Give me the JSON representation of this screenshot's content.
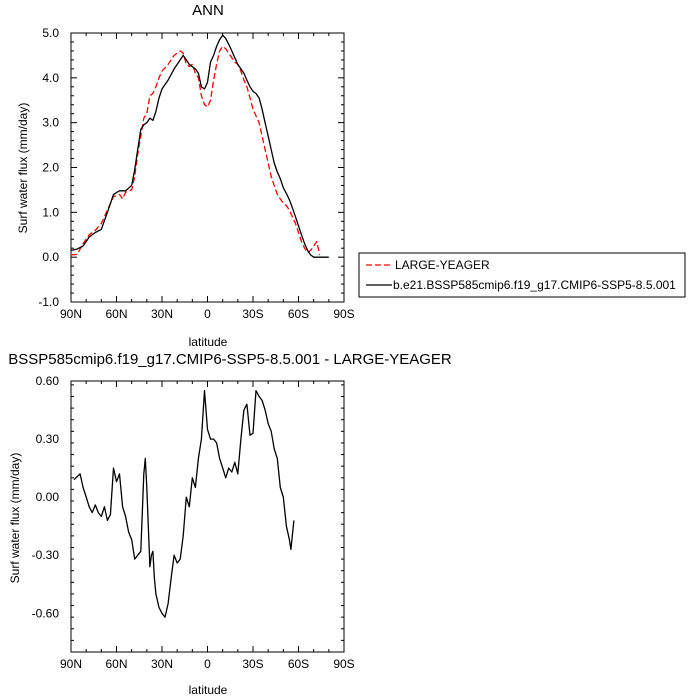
{
  "chart_data": [
    {
      "type": "line",
      "title": "ANN",
      "xlabel": "latitude",
      "ylabel": "Surf water flux (mm/day)",
      "xlim": [
        90,
        -90
      ],
      "ylim": [
        -1.0,
        5.0
      ],
      "x_ticks": [
        90,
        60,
        30,
        0,
        -30,
        -60,
        -90
      ],
      "x_tick_labels": [
        "90N",
        "60N",
        "30N",
        "0",
        "30S",
        "60S",
        "90S"
      ],
      "y_ticks": [
        -1.0,
        0.0,
        1.0,
        2.0,
        3.0,
        4.0,
        5.0
      ],
      "y_tick_labels": [
        "-1.0",
        "0.0",
        "1.0",
        "2.0",
        "3.0",
        "4.0",
        "5.0"
      ],
      "legend_position": "right-bottom, outside plot",
      "series": [
        {
          "name": "LARGE-YEAGER",
          "color": "#ff0000",
          "dash": "dashed",
          "points": [
            [
              90,
              0.05
            ],
            [
              86,
              0.06
            ],
            [
              82,
              0.3
            ],
            [
              78,
              0.5
            ],
            [
              74,
              0.6
            ],
            [
              70,
              0.75
            ],
            [
              66,
              1.05
            ],
            [
              62,
              1.35
            ],
            [
              58,
              1.4
            ],
            [
              56,
              1.3
            ],
            [
              54,
              1.45
            ],
            [
              50,
              1.5
            ],
            [
              48,
              1.8
            ],
            [
              46,
              2.3
            ],
            [
              44,
              2.7
            ],
            [
              42,
              3.1
            ],
            [
              40,
              3.2
            ],
            [
              38,
              3.6
            ],
            [
              36,
              3.65
            ],
            [
              34,
              3.8
            ],
            [
              32,
              4.0
            ],
            [
              30,
              4.15
            ],
            [
              26,
              4.3
            ],
            [
              22,
              4.5
            ],
            [
              18,
              4.6
            ],
            [
              16,
              4.55
            ],
            [
              14,
              4.3
            ],
            [
              12,
              4.25
            ],
            [
              10,
              4.3
            ],
            [
              8,
              4.1
            ],
            [
              6,
              4.0
            ],
            [
              4,
              3.6
            ],
            [
              2,
              3.4
            ],
            [
              0,
              3.35
            ],
            [
              -2,
              3.5
            ],
            [
              -4,
              3.95
            ],
            [
              -6,
              4.3
            ],
            [
              -8,
              4.6
            ],
            [
              -10,
              4.7
            ],
            [
              -12,
              4.65
            ],
            [
              -14,
              4.55
            ],
            [
              -16,
              4.45
            ],
            [
              -18,
              4.35
            ],
            [
              -20,
              4.3
            ],
            [
              -22,
              4.15
            ],
            [
              -24,
              3.95
            ],
            [
              -26,
              3.8
            ],
            [
              -28,
              3.55
            ],
            [
              -30,
              3.3
            ],
            [
              -32,
              3.15
            ],
            [
              -34,
              3.0
            ],
            [
              -36,
              2.7
            ],
            [
              -38,
              2.4
            ],
            [
              -40,
              2.1
            ],
            [
              -42,
              1.8
            ],
            [
              -44,
              1.6
            ],
            [
              -46,
              1.4
            ],
            [
              -48,
              1.3
            ],
            [
              -50,
              1.2
            ],
            [
              -52,
              1.15
            ],
            [
              -54,
              1.05
            ],
            [
              -56,
              0.9
            ],
            [
              -58,
              0.75
            ],
            [
              -60,
              0.55
            ],
            [
              -62,
              0.35
            ],
            [
              -64,
              0.2
            ],
            [
              -66,
              0.1
            ],
            [
              -68,
              0.15
            ],
            [
              -70,
              0.25
            ],
            [
              -72,
              0.35
            ],
            [
              -74,
              0.05
            ]
          ]
        },
        {
          "name": "b.e21.BSSP585cmip6.f19_g17.CMIP6-SSP5-8.5.001",
          "color": "#000000",
          "dash": "solid",
          "points": [
            [
              90,
              0.15
            ],
            [
              86,
              0.18
            ],
            [
              82,
              0.25
            ],
            [
              78,
              0.45
            ],
            [
              74,
              0.55
            ],
            [
              70,
              0.62
            ],
            [
              66,
              1.0
            ],
            [
              62,
              1.4
            ],
            [
              58,
              1.48
            ],
            [
              54,
              1.48
            ],
            [
              50,
              1.6
            ],
            [
              48,
              1.95
            ],
            [
              46,
              2.4
            ],
            [
              44,
              2.85
            ],
            [
              42,
              2.95
            ],
            [
              40,
              3.0
            ],
            [
              38,
              3.1
            ],
            [
              36,
              3.05
            ],
            [
              34,
              3.25
            ],
            [
              32,
              3.55
            ],
            [
              30,
              3.75
            ],
            [
              26,
              3.95
            ],
            [
              22,
              4.2
            ],
            [
              18,
              4.4
            ],
            [
              16,
              4.5
            ],
            [
              14,
              4.4
            ],
            [
              12,
              4.3
            ],
            [
              10,
              4.25
            ],
            [
              8,
              4.2
            ],
            [
              6,
              4.1
            ],
            [
              4,
              3.8
            ],
            [
              2,
              3.75
            ],
            [
              0,
              3.9
            ],
            [
              -2,
              4.35
            ],
            [
              -4,
              4.5
            ],
            [
              -6,
              4.7
            ],
            [
              -8,
              4.85
            ],
            [
              -10,
              4.95
            ],
            [
              -12,
              4.88
            ],
            [
              -14,
              4.75
            ],
            [
              -16,
              4.6
            ],
            [
              -18,
              4.45
            ],
            [
              -20,
              4.3
            ],
            [
              -22,
              4.2
            ],
            [
              -24,
              4.1
            ],
            [
              -26,
              3.95
            ],
            [
              -28,
              3.8
            ],
            [
              -30,
              3.7
            ],
            [
              -32,
              3.65
            ],
            [
              -34,
              3.55
            ],
            [
              -36,
              3.3
            ],
            [
              -38,
              3.0
            ],
            [
              -40,
              2.7
            ],
            [
              -42,
              2.4
            ],
            [
              -44,
              2.1
            ],
            [
              -46,
              1.9
            ],
            [
              -48,
              1.75
            ],
            [
              -50,
              1.55
            ],
            [
              -52,
              1.42
            ],
            [
              -54,
              1.28
            ],
            [
              -56,
              1.1
            ],
            [
              -58,
              0.9
            ],
            [
              -60,
              0.7
            ],
            [
              -62,
              0.5
            ],
            [
              -64,
              0.3
            ],
            [
              -66,
              0.15
            ],
            [
              -68,
              0.05
            ],
            [
              -70,
              0.0
            ],
            [
              -74,
              0.0
            ],
            [
              -78,
              0.0
            ],
            [
              -80,
              0.0
            ]
          ]
        }
      ]
    },
    {
      "type": "line",
      "title": "BSSP585cmip6.f19_g17.CMIP6-SSP5-8.5.001 - LARGE-YEAGER",
      "xlabel": "latitude",
      "ylabel": "Surf water flux (mm/day)",
      "xlim": [
        90,
        -90
      ],
      "ylim": [
        -0.8,
        0.6
      ],
      "x_ticks": [
        90,
        60,
        30,
        0,
        -30,
        -60,
        -90
      ],
      "x_tick_labels": [
        "90N",
        "60N",
        "30N",
        "0",
        "30S",
        "60S",
        "90S"
      ],
      "y_ticks": [
        -0.6,
        -0.3,
        0.0,
        0.3,
        0.6
      ],
      "y_tick_labels": [
        "-0.60",
        "-0.30",
        "0.00",
        "0.30",
        "0.60"
      ],
      "series": [
        {
          "color": "#000000",
          "dash": "solid",
          "points": [
            [
              88,
              0.09
            ],
            [
              84,
              0.12
            ],
            [
              82,
              0.05
            ],
            [
              80,
              0.0
            ],
            [
              78,
              -0.05
            ],
            [
              76,
              -0.08
            ],
            [
              74,
              -0.04
            ],
            [
              72,
              -0.08
            ],
            [
              70,
              -0.1
            ],
            [
              68,
              -0.05
            ],
            [
              66,
              -0.12
            ],
            [
              64,
              -0.09
            ],
            [
              62,
              0.15
            ],
            [
              60,
              0.08
            ],
            [
              58,
              0.12
            ],
            [
              56,
              -0.05
            ],
            [
              54,
              -0.1
            ],
            [
              52,
              -0.18
            ],
            [
              50,
              -0.22
            ],
            [
              48,
              -0.32
            ],
            [
              46,
              -0.3
            ],
            [
              44,
              -0.28
            ],
            [
              42,
              0.12
            ],
            [
              41,
              0.2
            ],
            [
              40,
              0.05
            ],
            [
              38,
              -0.36
            ],
            [
              37,
              -0.3
            ],
            [
              36,
              -0.28
            ],
            [
              35,
              -0.42
            ],
            [
              34,
              -0.5
            ],
            [
              32,
              -0.57
            ],
            [
              30,
              -0.6
            ],
            [
              28,
              -0.62
            ],
            [
              26,
              -0.55
            ],
            [
              24,
              -0.42
            ],
            [
              22,
              -0.3
            ],
            [
              20,
              -0.34
            ],
            [
              18,
              -0.32
            ],
            [
              16,
              -0.2
            ],
            [
              14,
              0.0
            ],
            [
              12,
              -0.05
            ],
            [
              10,
              0.1
            ],
            [
              8,
              0.05
            ],
            [
              6,
              0.2
            ],
            [
              4,
              0.3
            ],
            [
              2,
              0.55
            ],
            [
              0,
              0.35
            ],
            [
              -2,
              0.3
            ],
            [
              -4,
              0.3
            ],
            [
              -6,
              0.28
            ],
            [
              -8,
              0.2
            ],
            [
              -10,
              0.15
            ],
            [
              -12,
              0.1
            ],
            [
              -14,
              0.15
            ],
            [
              -16,
              0.13
            ],
            [
              -18,
              0.18
            ],
            [
              -20,
              0.12
            ],
            [
              -22,
              0.3
            ],
            [
              -24,
              0.45
            ],
            [
              -26,
              0.48
            ],
            [
              -28,
              0.32
            ],
            [
              -30,
              0.33
            ],
            [
              -32,
              0.55
            ],
            [
              -34,
              0.52
            ],
            [
              -36,
              0.5
            ],
            [
              -38,
              0.45
            ],
            [
              -40,
              0.38
            ],
            [
              -42,
              0.34
            ],
            [
              -44,
              0.25
            ],
            [
              -46,
              0.2
            ],
            [
              -48,
              0.05
            ],
            [
              -50,
              0.0
            ],
            [
              -52,
              -0.15
            ],
            [
              -54,
              -0.22
            ],
            [
              -55,
              -0.27
            ],
            [
              -57,
              -0.12
            ]
          ]
        }
      ]
    }
  ]
}
